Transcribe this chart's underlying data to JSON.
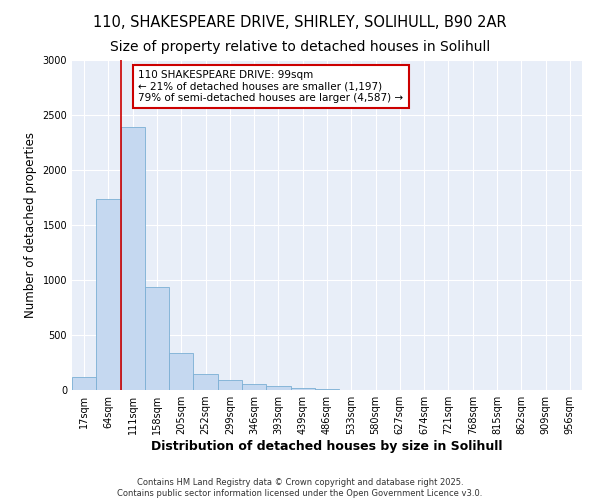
{
  "title_line1": "110, SHAKESPEARE DRIVE, SHIRLEY, SOLIHULL, B90 2AR",
  "title_line2": "Size of property relative to detached houses in Solihull",
  "xlabel": "Distribution of detached houses by size in Solihull",
  "ylabel": "Number of detached properties",
  "categories": [
    "17sqm",
    "64sqm",
    "111sqm",
    "158sqm",
    "205sqm",
    "252sqm",
    "299sqm",
    "346sqm",
    "393sqm",
    "439sqm",
    "486sqm",
    "533sqm",
    "580sqm",
    "627sqm",
    "674sqm",
    "721sqm",
    "768sqm",
    "815sqm",
    "862sqm",
    "909sqm",
    "956sqm"
  ],
  "values": [
    115,
    1740,
    2390,
    940,
    335,
    150,
    88,
    55,
    38,
    15,
    5,
    0,
    0,
    0,
    0,
    0,
    0,
    0,
    0,
    0,
    0
  ],
  "bar_color": "#c5d8f0",
  "bar_edgecolor": "#7bafd4",
  "vline_color": "#cc0000",
  "vline_x_idx": 2,
  "annotation_text": "110 SHAKESPEARE DRIVE: 99sqm\n← 21% of detached houses are smaller (1,197)\n79% of semi-detached houses are larger (4,587) →",
  "annotation_box_edgecolor": "#cc0000",
  "annotation_box_facecolor": "#ffffff",
  "ylim": [
    0,
    3000
  ],
  "yticks": [
    0,
    500,
    1000,
    1500,
    2000,
    2500,
    3000
  ],
  "bg_color": "#ffffff",
  "plot_bg_color": "#e8eef8",
  "grid_color": "#ffffff",
  "footer_line1": "Contains HM Land Registry data © Crown copyright and database right 2025.",
  "footer_line2": "Contains public sector information licensed under the Open Government Licence v3.0.",
  "title_fontsize": 10.5,
  "xlabel_fontsize": 9,
  "ylabel_fontsize": 8.5,
  "tick_fontsize": 7,
  "annotation_fontsize": 7.5,
  "footer_fontsize": 6
}
